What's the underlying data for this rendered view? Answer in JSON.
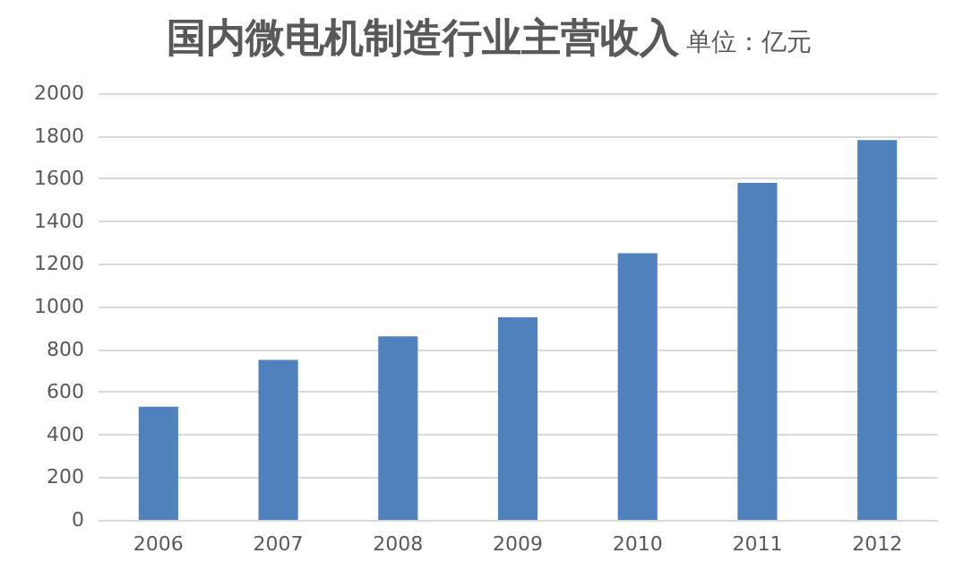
{
  "chart_data": {
    "type": "bar",
    "title": "国内微电机制造行业主营收入",
    "subtitle": "单位：亿元",
    "categories": [
      "2006",
      "2007",
      "2008",
      "2009",
      "2010",
      "2011",
      "2012"
    ],
    "values": [
      530,
      750,
      860,
      950,
      1250,
      1580,
      1780
    ],
    "color": "#4f81bd",
    "ylim": [
      0,
      2000
    ],
    "yticks": [
      0,
      200,
      400,
      600,
      800,
      1000,
      1200,
      1400,
      1600,
      1800,
      2000
    ],
    "grid": "y"
  }
}
